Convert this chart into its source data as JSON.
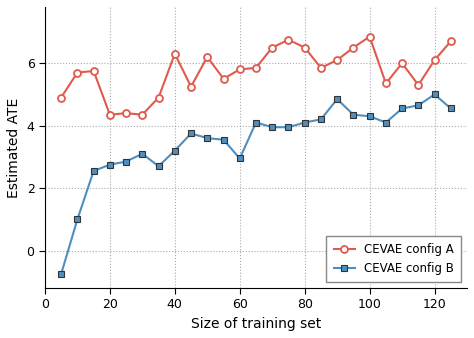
{
  "config_a_x": [
    5,
    10,
    15,
    20,
    25,
    30,
    35,
    40,
    45,
    50,
    55,
    60,
    65,
    70,
    75,
    80,
    85,
    90,
    95,
    100,
    105,
    110,
    115,
    120,
    125
  ],
  "config_a_y": [
    4.9,
    5.7,
    5.75,
    4.35,
    4.4,
    4.35,
    4.9,
    6.3,
    5.25,
    6.2,
    5.5,
    5.8,
    5.85,
    6.5,
    6.75,
    6.5,
    5.85,
    6.1,
    6.5,
    6.85,
    5.35,
    6.0,
    5.3,
    6.1,
    6.7
  ],
  "config_b_x": [
    5,
    10,
    15,
    20,
    25,
    30,
    35,
    40,
    45,
    50,
    55,
    60,
    65,
    70,
    75,
    80,
    85,
    90,
    95,
    100,
    105,
    110,
    115,
    120,
    125
  ],
  "config_b_y": [
    -0.75,
    1.0,
    2.55,
    2.75,
    2.85,
    3.1,
    2.7,
    3.2,
    3.75,
    3.6,
    3.55,
    2.95,
    4.1,
    3.95,
    3.95,
    4.1,
    4.2,
    4.85,
    4.35,
    4.3,
    4.1,
    4.55,
    4.65,
    5.0,
    4.55
  ],
  "color_a": "#E05A4E",
  "color_b": "#4E8FBF",
  "marker_a": "o",
  "marker_b": "s",
  "label_a": "CEVAE config A",
  "label_b": "CEVAE config B",
  "xlabel": "Size of training set",
  "ylabel": "Estimated ATE",
  "xlim": [
    0,
    130
  ],
  "ylim": [
    -1.2,
    7.8
  ],
  "yticks": [
    0,
    2,
    4,
    6
  ],
  "xticks": [
    0,
    20,
    40,
    60,
    80,
    100,
    120
  ],
  "legend_loc": "lower right",
  "figsize": [
    4.74,
    3.38
  ],
  "dpi": 100
}
